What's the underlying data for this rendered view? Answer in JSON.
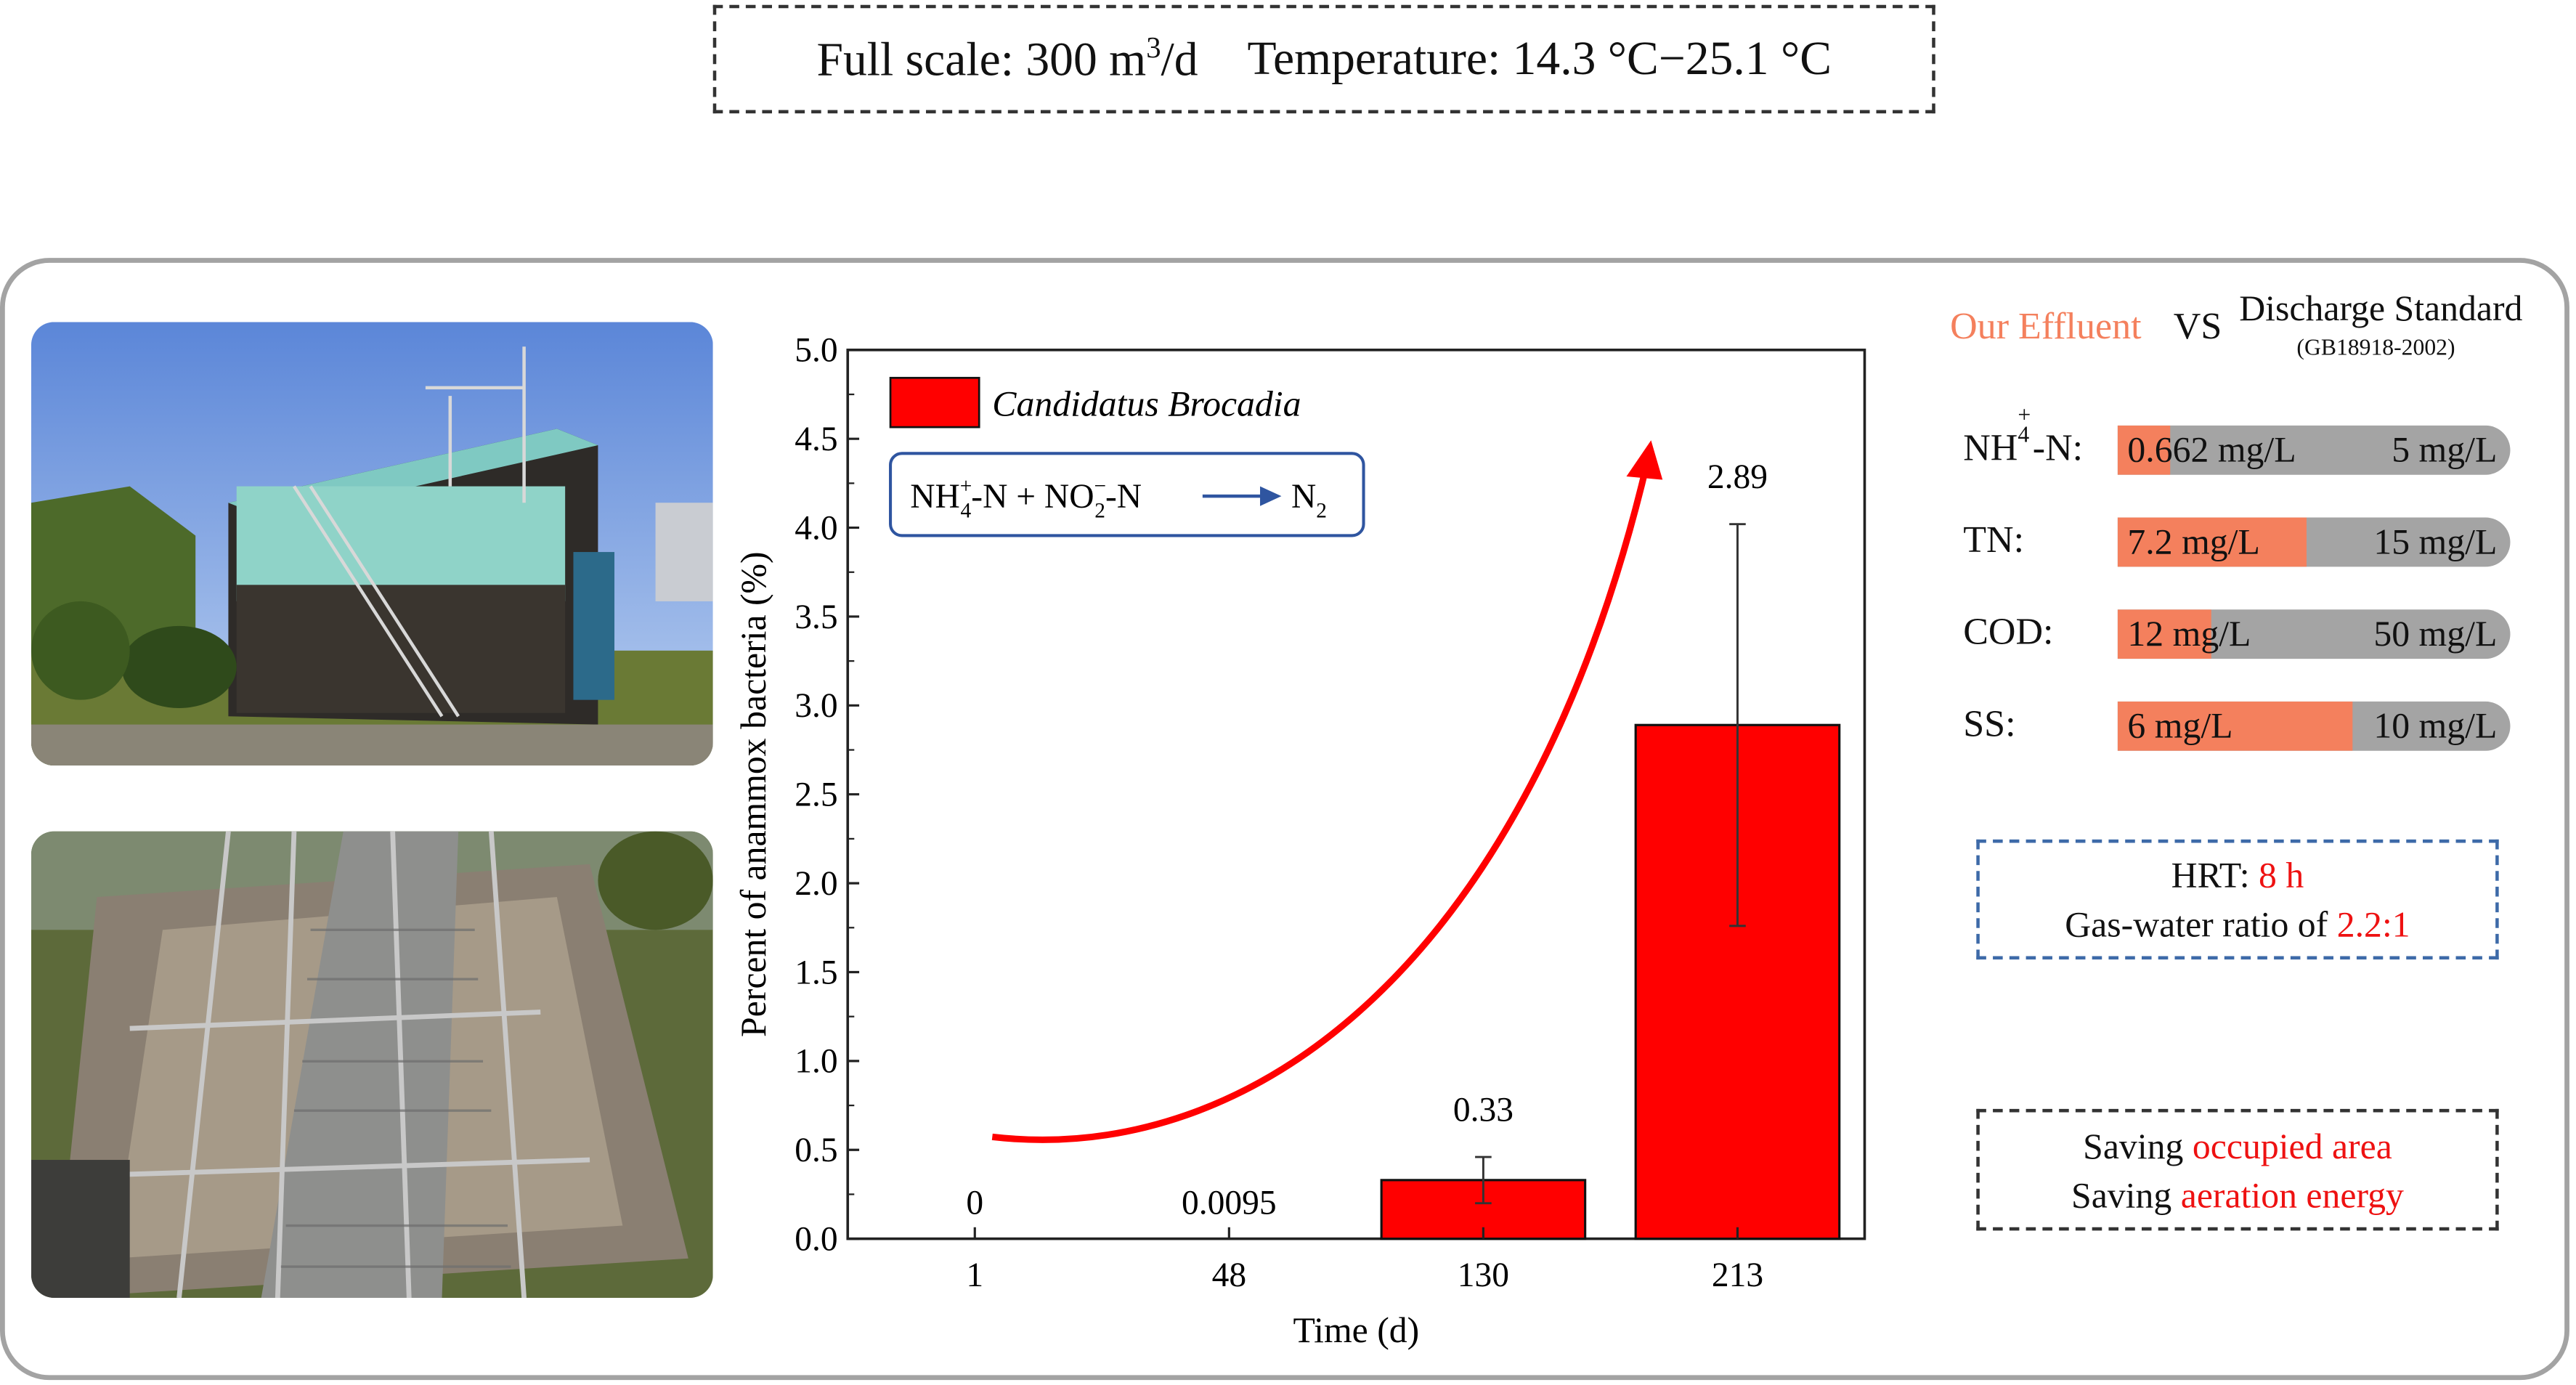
{
  "header": {
    "scale_text": "Full scale: 300 m",
    "scale_sup": "3",
    "scale_unit": "/d",
    "temperature": "Temperature: 14.3 °C−25.1 °C"
  },
  "colors": {
    "bar": "#ff0000",
    "effluent": "#f4805d",
    "standard": "#a4a4a4",
    "highlight": "#ee1111",
    "hrt_border": "#3d6aa8"
  },
  "chart_data": {
    "type": "bar",
    "categories": [
      "1",
      "48",
      "130",
      "213"
    ],
    "series": [
      {
        "name": "Candidatus Brocadia",
        "values": [
          0,
          0.0095,
          0.33,
          2.89
        ],
        "error": [
          0,
          0,
          0.13,
          1.13
        ]
      }
    ],
    "data_labels": [
      "0",
      "0.0095",
      "0.33",
      "2.89"
    ],
    "xlabel": "Time (d)",
    "ylabel": "Percent of anammox bacteria (%)",
    "ylim": [
      0,
      5.0
    ],
    "yticks": [
      "0.0",
      "0.5",
      "1.0",
      "1.5",
      "2.0",
      "2.5",
      "3.0",
      "3.5",
      "4.0",
      "4.5",
      "5.0"
    ],
    "legend": "top-left",
    "legend_label": "Candidatus Brocadia",
    "reaction": {
      "nh4": "NH",
      "nh4_sub": "4",
      "nh4_sup": "+",
      "mid": "-N + NO",
      "no2_sub": "2",
      "no2_sup": "−",
      "tail": "-N",
      "product": "N",
      "product_sub": "2"
    }
  },
  "comparison": {
    "effluent_label": "Our Effluent",
    "vs_label": "VS",
    "standard_label": "Discharge Standard",
    "standard_code": "(GB18918-2002)",
    "params": [
      {
        "label_main": "NH",
        "label_sub": "4",
        "label_sup": "+",
        "label_tail": "-N:",
        "effluent": "0.662 mg/L",
        "standard": "5 mg/L",
        "ratio": 0.132
      },
      {
        "label_main": "TN:",
        "label_sub": "",
        "label_sup": "",
        "label_tail": "",
        "effluent": "7.2 mg/L",
        "standard": "15 mg/L",
        "ratio": 0.48
      },
      {
        "label_main": "COD:",
        "label_sub": "",
        "label_sup": "",
        "label_tail": "",
        "effluent": "12 mg/L",
        "standard": "50 mg/L",
        "ratio": 0.24
      },
      {
        "label_main": "SS:",
        "label_sub": "",
        "label_sup": "",
        "label_tail": "",
        "effluent": "6 mg/L",
        "standard": "10 mg/L",
        "ratio": 0.6
      }
    ]
  },
  "hrt": {
    "hrt_label": "HRT: ",
    "hrt_value": "8 h",
    "gas_label": "Gas-water ratio of ",
    "gas_value": "2.2:1"
  },
  "savings": {
    "line1_prefix": "Saving ",
    "line1_value": "occupied area",
    "line2_prefix": "Saving ",
    "line2_value": "aeration energy"
  }
}
